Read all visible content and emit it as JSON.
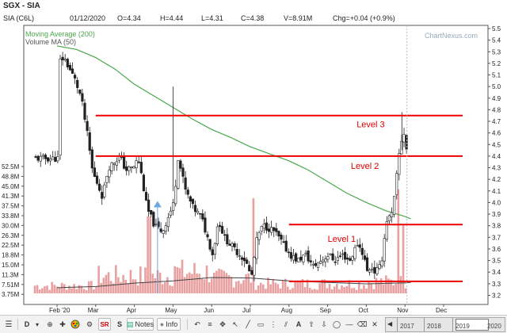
{
  "title": "SGX - SIA",
  "info": {
    "symbol": "SIA (C6L)",
    "date": "01/12/2020",
    "open": "O=4.34",
    "high": "H=4.44",
    "low": "L=4.31",
    "close": "C=4.38",
    "volume": "V=8.91M",
    "change": "Chg=+0.04 (+0.9%)"
  },
  "watermark": "ChartNexus.com",
  "legend": {
    "ma": "Moving Average (200)",
    "vma": "Volume MA (50)"
  },
  "annotations": [
    "Level 3",
    "Level 2",
    "Level 1"
  ],
  "colors": {
    "candle_up": "#ffffff",
    "candle_down": "#222222",
    "ma": "#4aa84a",
    "volume": "#e8a0a0",
    "level": "#ee0000",
    "annotation": "#dd0000",
    "marker": "#6fa8dc"
  },
  "chart_data": {
    "type": "candlestick",
    "price_axis": [
      "5.5",
      "5.4",
      "5.3",
      "5.2",
      "5.1",
      "5.0",
      "4.9",
      "4.8",
      "4.7",
      "4.6",
      "4.5",
      "4.4",
      "4.3",
      "4.2",
      "4.1",
      "4.0",
      "3.9",
      "3.8",
      "3.7",
      "3.6",
      "3.5",
      "3.4",
      "3.3",
      "3.2"
    ],
    "volume_axis": [
      "52.5M",
      "48.8M",
      "45.0M",
      "41.3M",
      "37.5M",
      "33.8M",
      "30.0M",
      "26.3M",
      "22.5M",
      "18.8M",
      "15.0M",
      "11.3M",
      "7.51M",
      "3.75M"
    ],
    "volume_range": [
      0,
      56
    ],
    "months": [
      "Feb '20",
      "Mar",
      "Apr",
      "May",
      "Jun",
      "Jul",
      "Aug",
      "Sep",
      "Oct",
      "Nov",
      "Dec"
    ],
    "levels": [
      {
        "name": "Level 3",
        "price": 4.75,
        "from": "Mar",
        "to": "Dec"
      },
      {
        "name": "Level 2",
        "price": 4.4,
        "from": "Mar",
        "to": "Dec"
      },
      {
        "name": "Level 1",
        "price": 3.81,
        "from": "Aug",
        "to": "Dec"
      },
      {
        "name": "",
        "price": 3.32,
        "from": "Aug",
        "to": "Dec"
      }
    ],
    "close_path": [
      [
        0,
        5.3
      ],
      [
        0.05,
        5.22
      ],
      [
        0.15,
        5.25
      ],
      [
        0.3,
        5.15
      ],
      [
        0.45,
        5.05
      ],
      [
        0.6,
        4.9
      ],
      [
        0.75,
        4.6
      ],
      [
        0.9,
        4.25
      ],
      [
        1.0,
        4.18
      ],
      [
        1.15,
        4.05
      ],
      [
        1.3,
        4.3
      ],
      [
        1.45,
        4.35
      ],
      [
        1.6,
        4.4
      ],
      [
        1.75,
        4.28
      ],
      [
        1.95,
        4.3
      ],
      [
        2.0,
        4.35
      ],
      [
        2.1,
        4.35
      ],
      [
        2.3,
        3.95
      ],
      [
        2.5,
        3.8
      ],
      [
        2.7,
        3.75
      ],
      [
        3.0,
        4.0
      ],
      [
        3.1,
        4.4
      ],
      [
        3.3,
        4.1
      ],
      [
        3.5,
        3.95
      ],
      [
        3.7,
        3.88
      ],
      [
        4.0,
        3.55
      ],
      [
        4.15,
        3.85
      ],
      [
        4.3,
        3.7
      ],
      [
        4.5,
        3.62
      ],
      [
        4.7,
        3.55
      ],
      [
        4.85,
        3.5
      ],
      [
        5.0,
        3.35
      ],
      [
        5.15,
        3.7
      ],
      [
        5.3,
        3.8
      ],
      [
        5.45,
        3.78
      ],
      [
        5.6,
        3.75
      ],
      [
        5.8,
        3.65
      ],
      [
        6.0,
        3.55
      ],
      [
        6.2,
        3.5
      ],
      [
        6.4,
        3.55
      ],
      [
        6.6,
        3.45
      ],
      [
        6.8,
        3.5
      ],
      [
        7.0,
        3.55
      ],
      [
        7.15,
        3.5
      ],
      [
        7.35,
        3.55
      ],
      [
        7.55,
        3.5
      ],
      [
        7.75,
        3.65
      ],
      [
        7.9,
        3.55
      ],
      [
        8.0,
        3.4
      ],
      [
        8.1,
        3.45
      ],
      [
        8.2,
        3.4
      ],
      [
        8.35,
        3.45
      ],
      [
        8.5,
        3.85
      ],
      [
        8.65,
        3.9
      ],
      [
        8.75,
        4.2
      ],
      [
        8.85,
        4.5
      ],
      [
        8.95,
        4.6
      ],
      [
        9.05,
        4.38
      ]
    ],
    "ma200": [
      [
        0,
        5.35
      ],
      [
        0.5,
        5.32
      ],
      [
        1.0,
        5.25
      ],
      [
        1.5,
        5.15
      ],
      [
        2.0,
        5.02
      ],
      [
        2.5,
        4.92
      ],
      [
        3.0,
        4.82
      ],
      [
        3.5,
        4.72
      ],
      [
        4.0,
        4.63
      ],
      [
        4.5,
        4.56
      ],
      [
        5.0,
        4.48
      ],
      [
        5.5,
        4.42
      ],
      [
        6.0,
        4.36
      ],
      [
        6.5,
        4.28
      ],
      [
        7.0,
        4.18
      ],
      [
        7.5,
        4.08
      ],
      [
        8.0,
        4.0
      ],
      [
        8.5,
        3.93
      ],
      [
        9.0,
        3.88
      ],
      [
        9.15,
        3.86
      ]
    ],
    "volume_ma50": [
      [
        0,
        2.5
      ],
      [
        1.0,
        3.0
      ],
      [
        2.0,
        4.5
      ],
      [
        3.0,
        5.5
      ],
      [
        4.0,
        7.0
      ],
      [
        5.0,
        6.8
      ],
      [
        6.0,
        5.5
      ],
      [
        7.0,
        4.8
      ],
      [
        8.0,
        4.2
      ],
      [
        9.0,
        4.6
      ],
      [
        9.15,
        4.8
      ]
    ],
    "volume_spikes": [
      {
        "x": 3.0,
        "v": 12
      },
      {
        "x": 5.05,
        "v": 42
      },
      {
        "x": 8.8,
        "v": 46
      },
      {
        "x": 8.95,
        "v": 30
      },
      {
        "x": 2.35,
        "v": 34
      }
    ],
    "marker": {
      "x": 2.6,
      "price": 4.0
    }
  },
  "toolbar": {
    "notes_label": "Notes",
    "info_label": "Info",
    "buttons": [
      "D",
      "S",
      "SR"
    ],
    "years": [
      "2017",
      "2018",
      "2019",
      "2020"
    ]
  }
}
